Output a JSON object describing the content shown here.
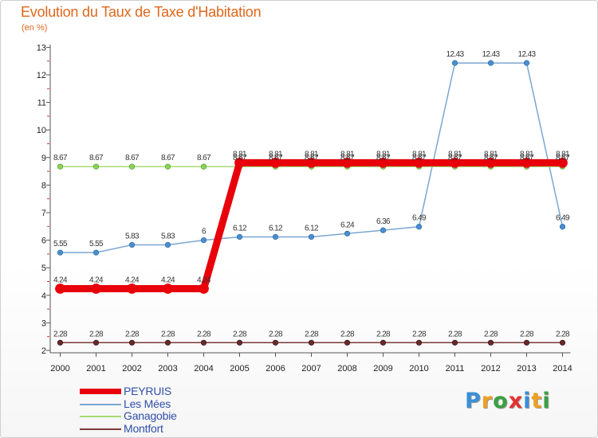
{
  "chart_data": {
    "type": "line",
    "title": "Evolution du Taux de Taxe d'Habitation",
    "unit_label": "(en %)",
    "x": [
      "2000",
      "2001",
      "2002",
      "2003",
      "2004",
      "2005",
      "2006",
      "2007",
      "2008",
      "2009",
      "2010",
      "2011",
      "2012",
      "2013",
      "2014"
    ],
    "y_ticks": [
      "2",
      "3",
      "4",
      "5",
      "6",
      "7",
      "8",
      "9",
      "10",
      "11",
      "12",
      "13"
    ],
    "ylim": [
      2,
      13
    ],
    "grid": false,
    "legend_position": "bottom-left",
    "series": [
      {
        "name": "PEYRUIS",
        "color": "#e8000b",
        "values": [
          4.24,
          4.24,
          4.24,
          4.24,
          4.24,
          8.81,
          8.81,
          8.81,
          8.81,
          8.81,
          8.81,
          8.81,
          8.81,
          8.81,
          8.81
        ],
        "labels": [
          "4.24",
          "4.24",
          "4.24",
          "4.24",
          "4.24",
          "8.81",
          "8.81",
          "8.81",
          "8.81",
          "8.81",
          "8.81",
          "8.81",
          "8.81",
          "8.81",
          "8.81"
        ]
      },
      {
        "name": "Les Mées",
        "color": "#7ba6d2",
        "values": [
          5.55,
          5.55,
          5.83,
          5.83,
          6,
          6.12,
          6.12,
          6.12,
          6.24,
          6.36,
          6.49,
          12.43,
          12.43,
          12.43,
          6.49
        ],
        "labels": [
          "5.55",
          "5.55",
          "5.83",
          "5.83",
          "6",
          "6.12",
          "6.12",
          "6.12",
          "6.24",
          "6.36",
          "6.49",
          "12.43",
          "12.43",
          "12.43",
          "6.49"
        ]
      },
      {
        "name": "Ganagobie",
        "color": "#a6dc73",
        "values": [
          8.67,
          8.67,
          8.67,
          8.67,
          8.67,
          8.67,
          8.67,
          8.67,
          8.67,
          8.67,
          8.67,
          8.67,
          8.67,
          8.67,
          8.67
        ],
        "labels": [
          "8.67",
          "8.67",
          "8.67",
          "8.67",
          "8.67",
          "8.67",
          "8.67",
          "8.67",
          "8.67",
          "8.67",
          "8.67",
          "8.67",
          "8.67",
          "8.67",
          "8.67"
        ]
      },
      {
        "name": "Montfort",
        "color": "#7a3a3a",
        "values": [
          2.28,
          2.28,
          2.28,
          2.28,
          2.28,
          2.28,
          2.28,
          2.28,
          2.28,
          2.28,
          2.28,
          2.28,
          2.28,
          2.28,
          2.28
        ],
        "labels": [
          "2.28",
          "2.28",
          "2.28",
          "2.28",
          "2.28",
          "2.28",
          "2.28",
          "2.28",
          "2.28",
          "2.28",
          "2.28",
          "2.28",
          "2.28",
          "2.28",
          "2.28"
        ]
      }
    ]
  },
  "logo": {
    "letters": [
      "P",
      "r",
      "o",
      "x",
      "i",
      "t",
      "i"
    ],
    "colors": [
      "#3a8fd8",
      "#f0a020",
      "#3aa040",
      "#e83030",
      "#3a8fd8",
      "#f0a020",
      "#3aa040"
    ]
  }
}
